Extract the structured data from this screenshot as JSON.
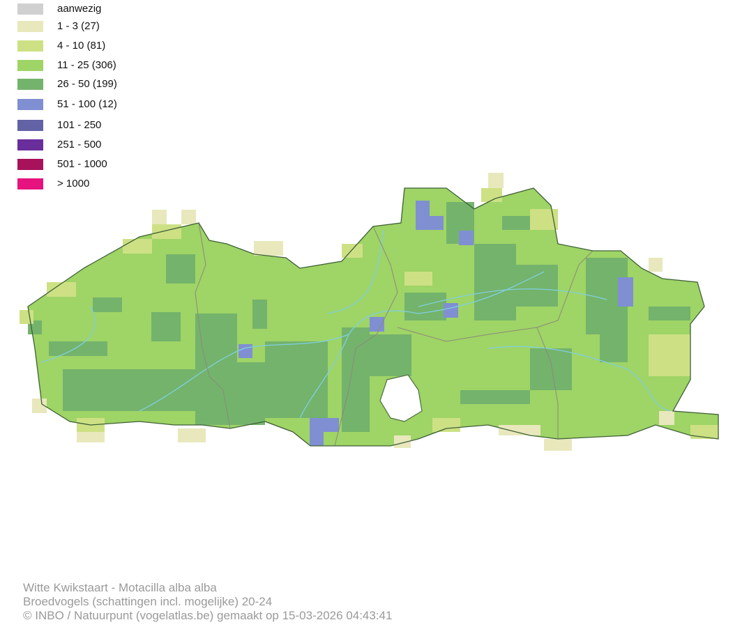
{
  "legend": {
    "items": [
      {
        "label": "aanwezig",
        "color": "#d0d0d0"
      },
      {
        "label": "1 - 3 (27)",
        "color": "#e8e8bc"
      },
      {
        "label": "4 - 10 (81)",
        "color": "#cde184"
      },
      {
        "label": "11 - 25 (306)",
        "color": "#9fd466"
      },
      {
        "label": "26 - 50 (199)",
        "color": "#74b36c"
      },
      {
        "label": "51 - 100 (12)",
        "color": "#7f8fd2"
      },
      {
        "label": "101 - 250",
        "color": "#6262a6"
      },
      {
        "label": "251 - 500",
        "color": "#6a2d9c"
      },
      {
        "label": "501 - 1000",
        "color": "#a8125a"
      },
      {
        "label": "> 1000",
        "color": "#e6137f"
      }
    ]
  },
  "footer": {
    "lines": [
      "Witte Kwikstaart - Motacilla alba alba",
      "Broedvogels (schattingen incl. mogelijke) 20-24",
      "© INBO / Natuurpunt (vogelatlas.be) gemaakt op 15-03-2026 04:43:41"
    ]
  }
}
